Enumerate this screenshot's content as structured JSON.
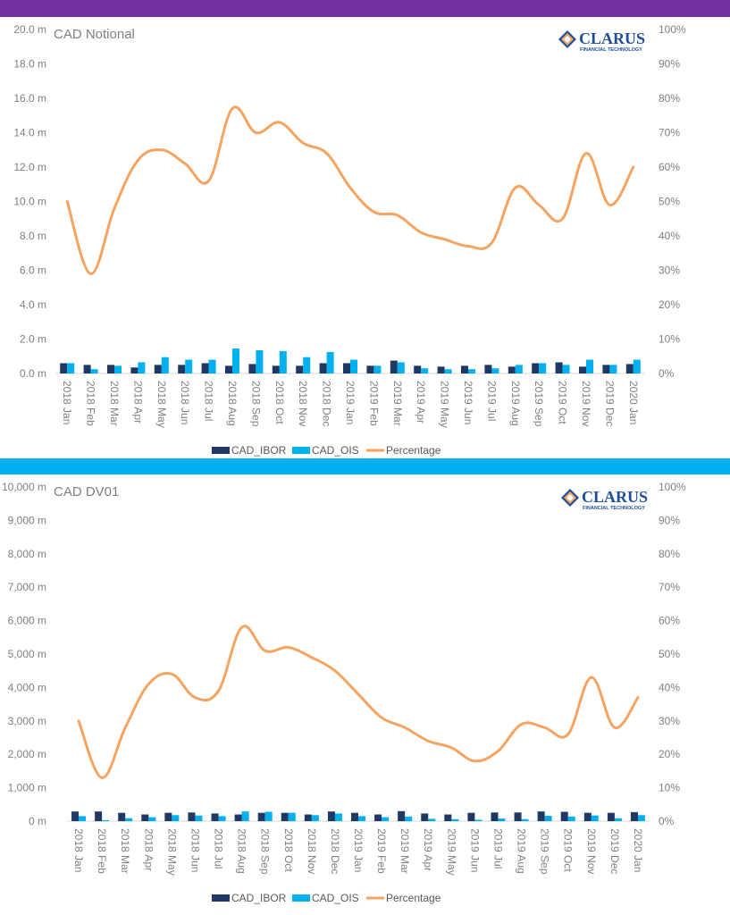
{
  "colors": {
    "top_band": "#7030a0",
    "mid_band": "#00b0f0",
    "ibor": "#1f3864",
    "ois": "#00b0f0",
    "percentage": "#f4a460",
    "axis_text": "#7f7f7f"
  },
  "logo": {
    "word": "CLARUS",
    "sub": "FINANCIAL TECHNOLOGY",
    "icon": "clarus-diamond-logo"
  },
  "chart_data": [
    {
      "type": "bar",
      "title": "CAD Notional",
      "categories": [
        "2018 Jan",
        "2018 Feb",
        "2018 Mar",
        "2018 Apr",
        "2018 May",
        "2018 Jun",
        "2018 Jul",
        "2018 Aug",
        "2018 Sep",
        "2018 Oct",
        "2018 Nov",
        "2018 Dec",
        "2019 Jan",
        "2019 Feb",
        "2019 Mar",
        "2019 Apr",
        "2019 May",
        "2019 Jun",
        "2019 Jul",
        "2019 Aug",
        "2019 Sep",
        "2019 Oct",
        "2019 Nov",
        "2019 Dec",
        "2020 Jan"
      ],
      "left_ticks": [
        "0.0 m",
        "2.0 m",
        "4.0 m",
        "6.0 m",
        "8.0 m",
        "10.0 m",
        "12.0 m",
        "14.0 m",
        "16.0 m",
        "18.0 m",
        "20.0 m"
      ],
      "right_ticks": [
        "0%",
        "10%",
        "20%",
        "30%",
        "40%",
        "50%",
        "60%",
        "70%",
        "80%",
        "90%",
        "100%"
      ],
      "ylim": [
        0,
        20
      ],
      "y2lim": [
        0,
        100
      ],
      "legend_position": "bottom",
      "series": [
        {
          "name": "CAD_IBOR",
          "kind": "bar",
          "axis": "left",
          "values": [
            0.6,
            0.5,
            0.5,
            0.35,
            0.5,
            0.5,
            0.6,
            0.45,
            0.55,
            0.45,
            0.45,
            0.6,
            0.6,
            0.45,
            0.75,
            0.45,
            0.4,
            0.45,
            0.5,
            0.4,
            0.6,
            0.65,
            0.4,
            0.5,
            0.55
          ]
        },
        {
          "name": "CAD_OIS",
          "kind": "bar",
          "axis": "left",
          "values": [
            0.6,
            0.25,
            0.45,
            0.65,
            0.95,
            0.8,
            0.8,
            1.45,
            1.35,
            1.3,
            0.95,
            1.25,
            0.8,
            0.45,
            0.65,
            0.3,
            0.25,
            0.25,
            0.3,
            0.5,
            0.6,
            0.5,
            0.8,
            0.5,
            0.8
          ]
        },
        {
          "name": "Percentage",
          "kind": "line",
          "axis": "right",
          "values": [
            50,
            29,
            48,
            62,
            65,
            61,
            56,
            77,
            70,
            73,
            67,
            64,
            54,
            47,
            46,
            41,
            39,
            37,
            38,
            54,
            49,
            45,
            64,
            49,
            60
          ]
        }
      ]
    },
    {
      "type": "bar",
      "title": "CAD DV01",
      "categories": [
        "2018 Jan",
        "2018 Feb",
        "2018 Mar",
        "2018 Apr",
        "2018 May",
        "2018 Jun",
        "2018 Jul",
        "2018 Aug",
        "2018 Sep",
        "2018 Oct",
        "2018 Nov",
        "2018 Dec",
        "2019 Jan",
        "2019 Feb",
        "2019 Mar",
        "2019 Apr",
        "2019 May",
        "2019 Jun",
        "2019 Jul",
        "2019 Aug",
        "2019 Sep",
        "2019 Oct",
        "2019 Nov",
        "2019 Dec",
        "2020 Jan"
      ],
      "left_ticks": [
        "0 m",
        "1,000 m",
        "2,000 m",
        "3,000 m",
        "4,000 m",
        "5,000 m",
        "6,000 m",
        "7,000 m",
        "8,000 m",
        "9,000 m",
        "10,000 m"
      ],
      "right_ticks": [
        "0%",
        "10%",
        "20%",
        "30%",
        "40%",
        "50%",
        "60%",
        "70%",
        "80%",
        "90%",
        "100%"
      ],
      "ylim": [
        0,
        10000
      ],
      "y2lim": [
        0,
        100
      ],
      "legend_position": "bottom",
      "series": [
        {
          "name": "CAD_IBOR",
          "kind": "bar",
          "axis": "left",
          "values": [
            290,
            290,
            250,
            200,
            250,
            260,
            230,
            200,
            250,
            250,
            200,
            290,
            250,
            200,
            300,
            230,
            200,
            250,
            260,
            260,
            290,
            280,
            250,
            250,
            270
          ]
        },
        {
          "name": "CAD_OIS",
          "kind": "bar",
          "axis": "left",
          "values": [
            150,
            30,
            90,
            120,
            180,
            170,
            150,
            290,
            280,
            250,
            180,
            230,
            150,
            120,
            140,
            70,
            60,
            40,
            80,
            60,
            160,
            140,
            170,
            90,
            180
          ]
        },
        {
          "name": "Percentage",
          "kind": "line",
          "axis": "right",
          "values": [
            30,
            13,
            28,
            41,
            44,
            37,
            39,
            58,
            51,
            52,
            49,
            45,
            38,
            31,
            28,
            24,
            22,
            18,
            21,
            29,
            28,
            26,
            43,
            28,
            37
          ]
        }
      ]
    }
  ]
}
